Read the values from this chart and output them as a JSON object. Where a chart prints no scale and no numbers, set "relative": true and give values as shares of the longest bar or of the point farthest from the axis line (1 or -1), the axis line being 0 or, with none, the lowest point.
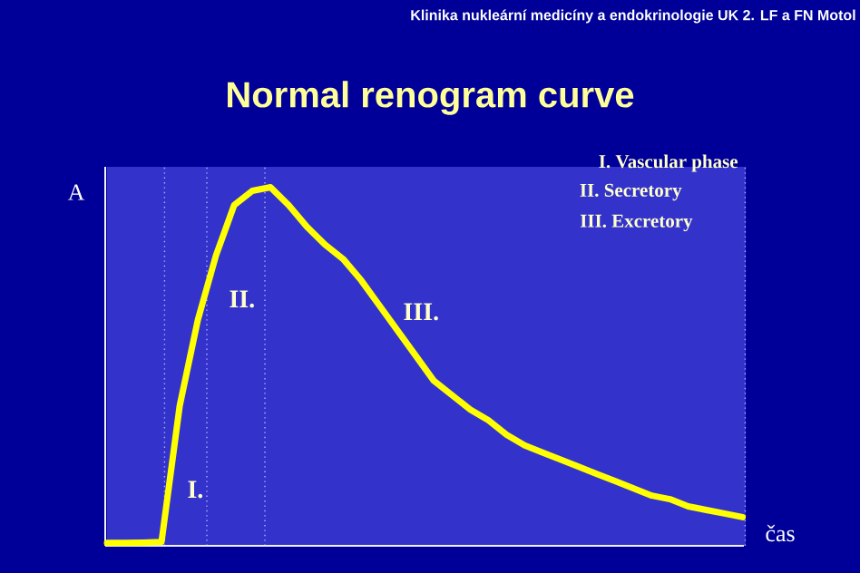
{
  "chart_data": {
    "type": "line",
    "title": "Normal renogram curve",
    "xlabel": "čas",
    "ylabel": "A",
    "relative": true,
    "marker": "none",
    "line_style": "solid",
    "categories": [
      null,
      null,
      null,
      null,
      null,
      null,
      null,
      null,
      null,
      null,
      null,
      null,
      null,
      null,
      null,
      null,
      null,
      null,
      null,
      null,
      null,
      null,
      null,
      null,
      null,
      null,
      null,
      null,
      null,
      null,
      null,
      null,
      null,
      null,
      null,
      null
    ],
    "series": [
      {
        "color": "#ffff00",
        "values": [
          0.008,
          0.008,
          0.009,
          0.011,
          0.39,
          0.63,
          0.81,
          0.95,
          0.99,
          1,
          0.95,
          0.89,
          0.84,
          0.8,
          0.74,
          0.67,
          0.6,
          0.53,
          0.46,
          0.42,
          0.38,
          0.35,
          0.31,
          0.28,
          0.26,
          0.24,
          0.22,
          0.2,
          0.18,
          0.16,
          0.14,
          0.13,
          0.11,
          0.1,
          0.09,
          0.08
        ]
      }
    ],
    "annotations": [
      "Klinika nukleární medicíny a endokrinologie UK 2. LF a FN Motol",
      "I.  Vascular phase",
      "II.  Secretory",
      "III.  Excretory",
      "I.",
      "II.",
      "III."
    ]
  }
}
